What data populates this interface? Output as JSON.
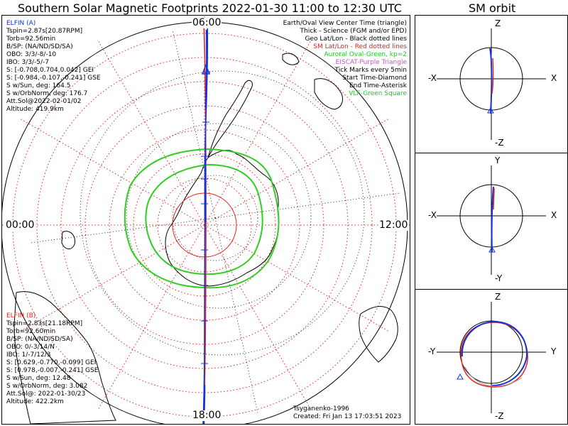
{
  "title": "Southern Solar Magnetic Footprints 2022-01-30 11:00 to 12:30 UTC",
  "side_title": "SM orbit",
  "clock_labels": {
    "top": "06:00",
    "bottom": "18:00",
    "left": "00:00",
    "right": "12:00"
  },
  "elfin_a": {
    "name": "ELFIN (A)",
    "lines": [
      "Tspin=2.87s[20.87RPM]",
      "Torb=92.56min",
      "B/SP: (NA/ND/SD/SA)",
      "OBO: 3/3/-8/-10",
      "IBO: 3/3/-5/-7",
      "S: [-0.708,0.704,0.042] GEI",
      "S: [-0.984,-0.107,-0.241] GSE",
      "S w/Sun, deg: 164.5",
      "S w/OrbNorm, deg: 176.7",
      "Att.Sol@2022-02-01/02",
      "Altitude: 419.9km"
    ]
  },
  "elfin_b": {
    "name": "ELFIN (B)",
    "lines": [
      "Tspin=2.83s[21.18RPM]",
      "Torb=92.60min",
      "B/SP: (NA/ND/SD/SA)",
      "OBO: 0/-3/14/N",
      "IBO: 1/-7/12/3",
      "S: [0.629,-0.770,-0.099] GEI",
      "S: [0.978,-0.007,-0.241] GSE",
      "S w/Sun, deg: 12.48",
      "S w/OrbNorm, deg: 3.082",
      "Att.Sol@: 2022-01-30/23",
      "Altitude: 422.2km"
    ]
  },
  "legend": [
    {
      "text": "Earth/Oval View Center Time (triangle)",
      "color": "#000000"
    },
    {
      "text": "Thick - Science (FGM and/or EPD)",
      "color": "#000000"
    },
    {
      "text": "Geo Lat/Lon - Black dotted lines",
      "color": "#000000"
    },
    {
      "text": "SM Lat/Lon - Red dotted lines",
      "color": "#e8241c"
    },
    {
      "text": "Auroral Oval-Green, kp=2",
      "color": "#22cc22"
    },
    {
      "text": "EISCAT-Purple Triangle",
      "color": "#cc55cc"
    },
    {
      "text": "Tick Marks every 5min",
      "color": "#000000"
    },
    {
      "text": "Start Time-Diamond",
      "color": "#000000"
    },
    {
      "text": "End Time-Asterisk",
      "color": "#000000"
    },
    {
      "text": "VLF-Green Square",
      "color": "#22cc22"
    }
  ],
  "footer": {
    "model": "Tsyganenko-1996",
    "created": "Created: Fri Jan 13 17:03:51 2023"
  },
  "orbit_panels": [
    {
      "top": "Z",
      "bottom": "-Z",
      "left": "-X",
      "right": "X"
    },
    {
      "top": "Y",
      "bottom": "-Y",
      "left": "-X",
      "right": "X"
    },
    {
      "top": "Z",
      "bottom": "-Z",
      "left": "-Y",
      "right": "Y"
    }
  ],
  "colors": {
    "elfin_a": "#1133dd",
    "elfin_b": "#e8241c",
    "oval": "#33cc22",
    "grid_red": "#e8241c",
    "coast": "#000000"
  }
}
